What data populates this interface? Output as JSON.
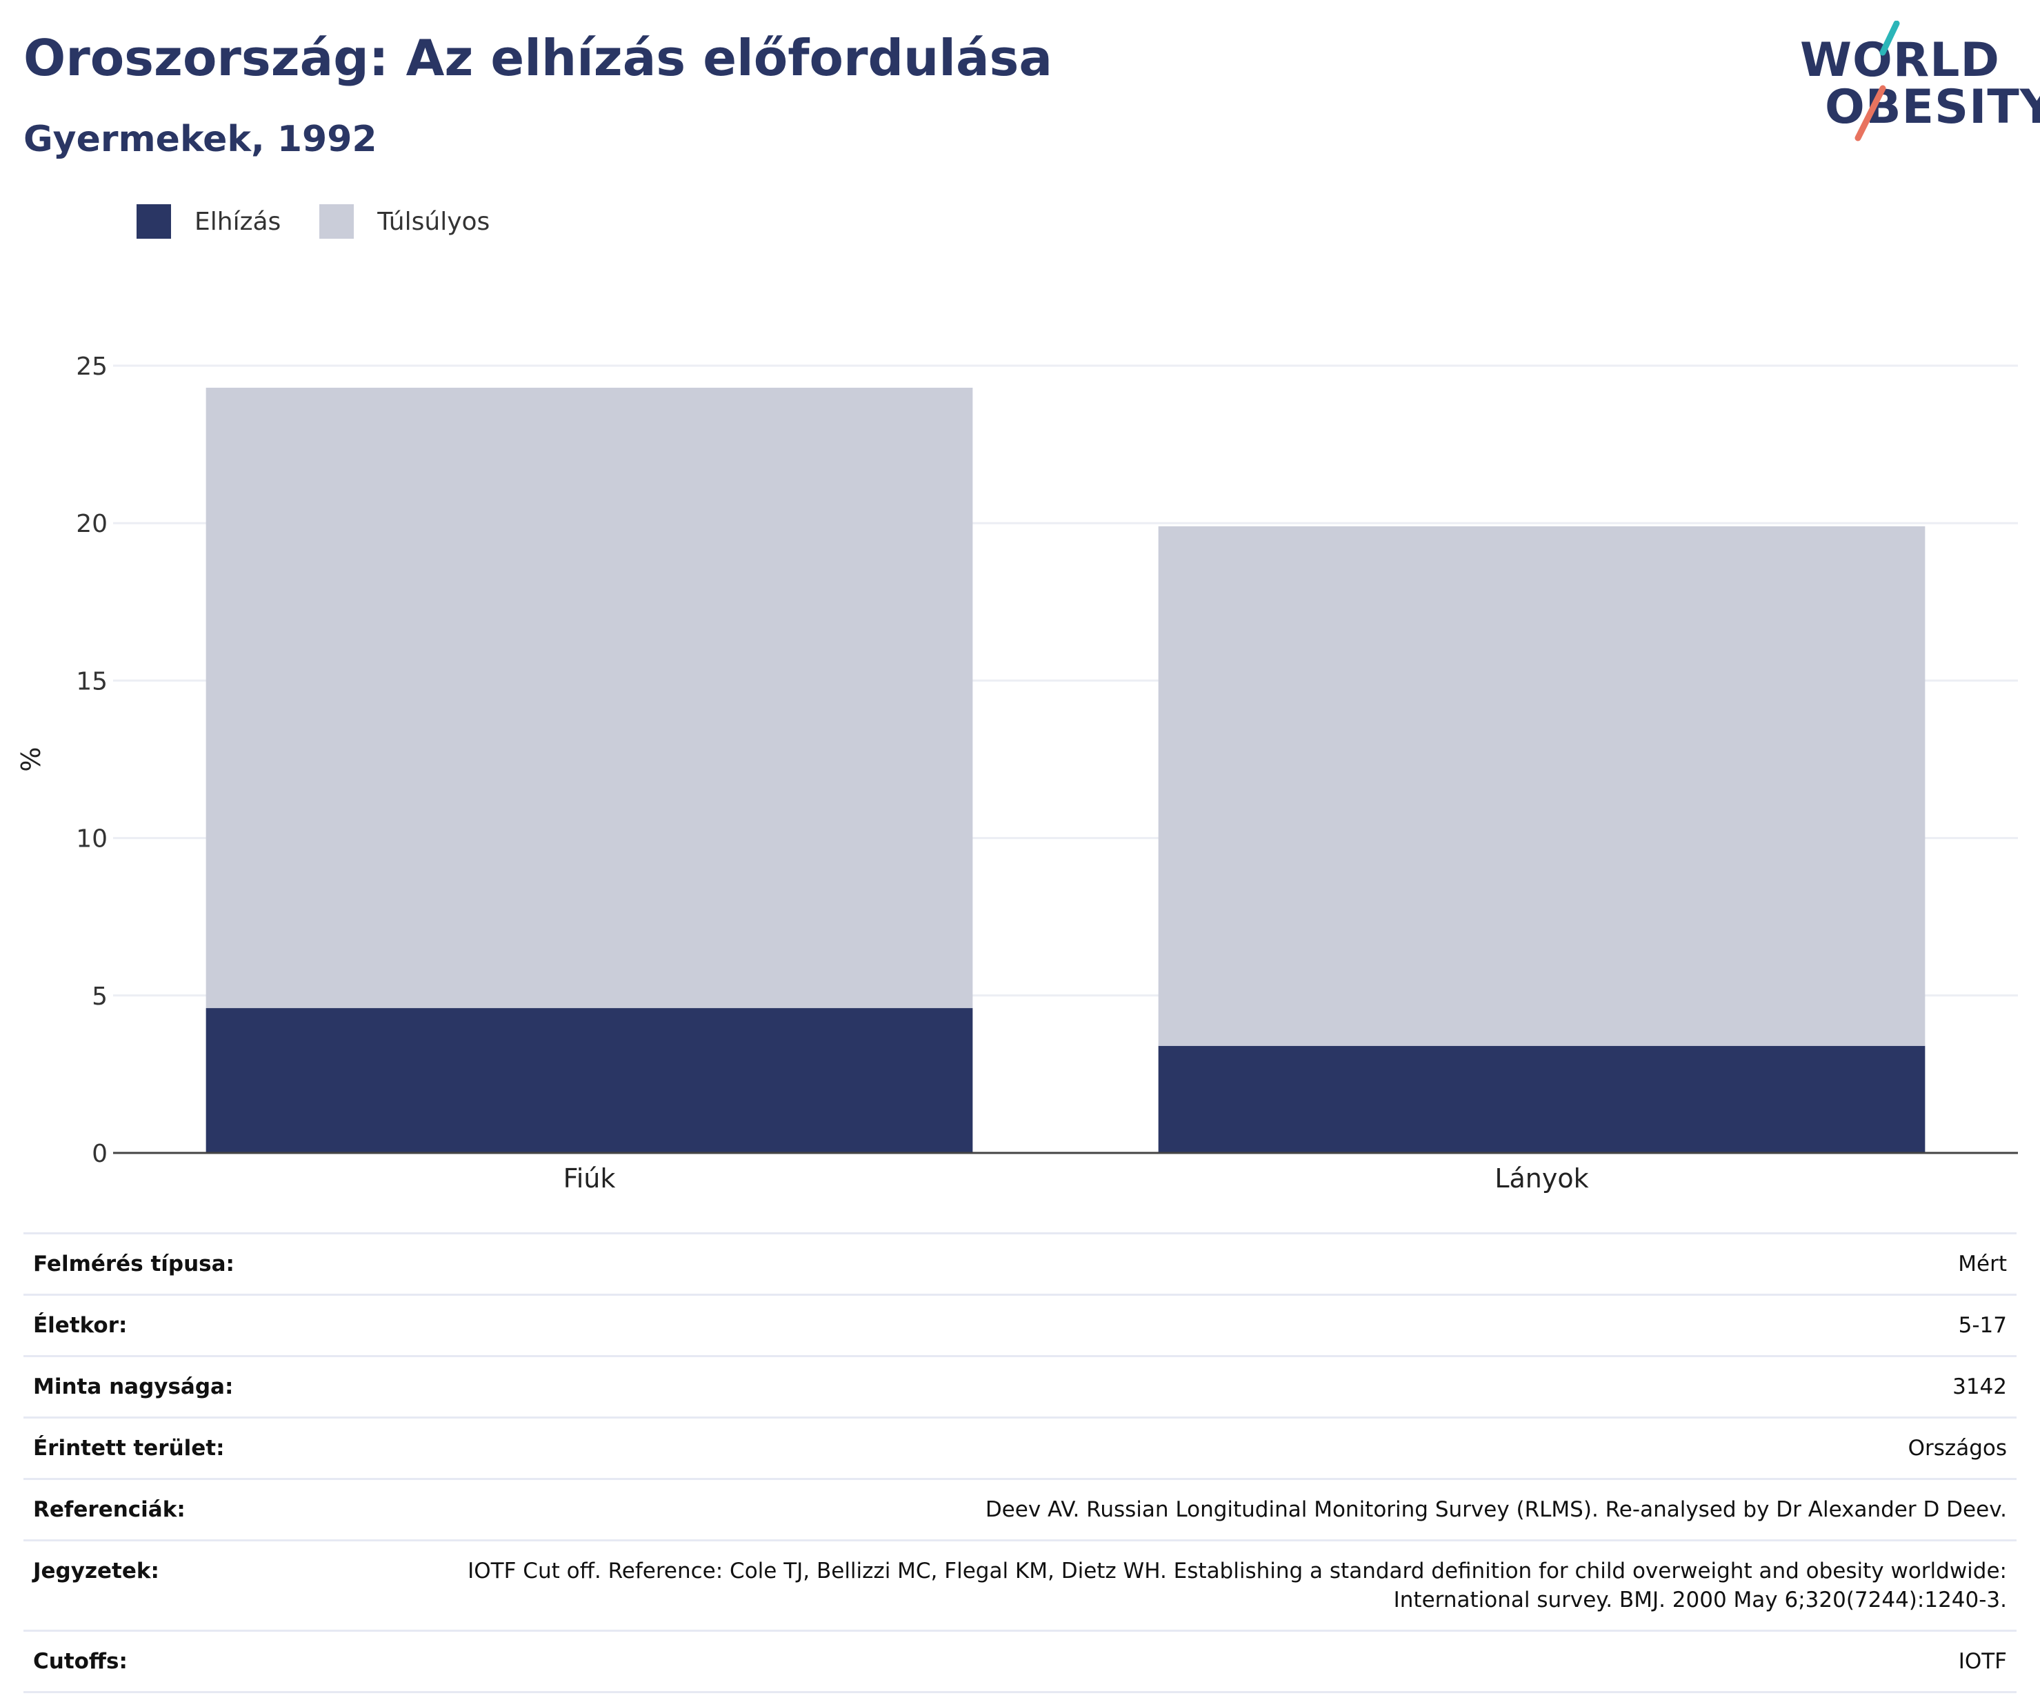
{
  "header": {
    "title": "Oroszország: Az elhízás előfordulása",
    "subtitle": "Gyermekek, 1992"
  },
  "logo": {
    "line1": "WORLD",
    "line2": "OBESITY",
    "accent_colors": [
      "#2bb5b8",
      "#e8735f"
    ]
  },
  "legend": [
    {
      "label": "Elhízás",
      "color": "#2a3664"
    },
    {
      "label": "Túlsúlyos",
      "color": "#cacdd9"
    }
  ],
  "chart_data": {
    "type": "bar",
    "stacked": true,
    "categories": [
      "Fiúk",
      "Lányok"
    ],
    "series": [
      {
        "name": "Elhízás",
        "values": [
          4.6,
          3.4
        ],
        "color": "#2a3664"
      },
      {
        "name": "Túlsúlyos",
        "values": [
          19.7,
          16.5
        ],
        "color": "#cacdd9"
      }
    ],
    "ylabel": "%",
    "ylim": [
      0,
      25
    ],
    "yticks": [
      0,
      5,
      10,
      15,
      20,
      25
    ],
    "grid": true,
    "legend_position": "top-left"
  },
  "info_table": [
    {
      "key": "Felmérés típusa:",
      "value": "Mért"
    },
    {
      "key": "Életkor:",
      "value": "5-17"
    },
    {
      "key": "Minta nagysága:",
      "value": "3142"
    },
    {
      "key": "Érintett terület:",
      "value": "Országos"
    },
    {
      "key": "Referenciák:",
      "value": "Deev AV. Russian Longitudinal Monitoring Survey (RLMS). Re-analysed by Dr Alexander D Deev."
    },
    {
      "key": "Jegyzetek:",
      "value": "IOTF Cut off. Reference: Cole TJ, Bellizzi MC, Flegal KM, Dietz WH. Establishing a standard definition for child overweight and obesity worldwide: International survey. BMJ. 2000 May 6;320(7244):1240-3."
    },
    {
      "key": "Cutoffs:",
      "value": "IOTF"
    }
  ]
}
